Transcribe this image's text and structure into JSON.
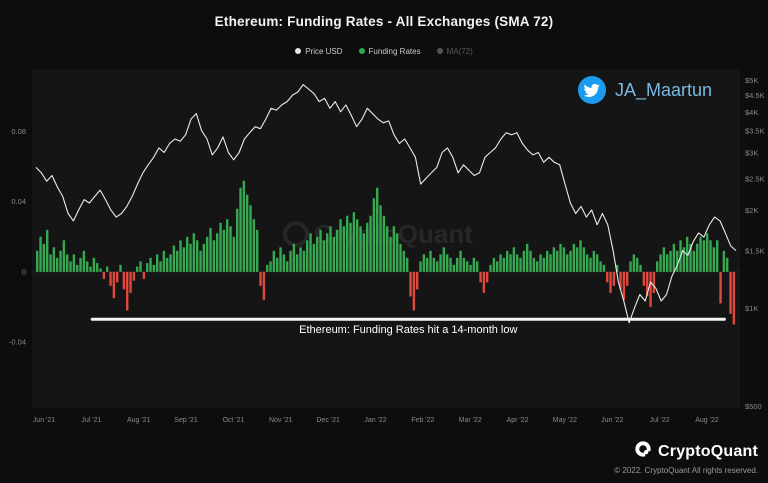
{
  "title": "Ethereum: Funding Rates - All Exchanges (SMA 72)",
  "legend": [
    {
      "label": "Price USD",
      "color": "#e8e8e8"
    },
    {
      "label": "Funding Rates",
      "color": "#2fa84f"
    },
    {
      "label": "MA(72)",
      "color": "#555555"
    }
  ],
  "twitter": {
    "handle": "JA_Maartun",
    "icon": "twitter-bird-icon",
    "blue": "#1d9bf0",
    "handle_color": "#7ab9e2"
  },
  "watermark": "CryptoQuant",
  "footer": {
    "brand": "CryptoQuant",
    "logo": "cryptoquant-logo-icon",
    "copyright": "© 2022. CryptoQuant All rights reserved."
  },
  "colors": {
    "background": "#0d0d0d",
    "panel": "#151515",
    "bar_positive": "#35a952",
    "bar_negative": "#e0483e",
    "price_line": "#ebebeb",
    "axis_text": "#8a8a8a",
    "annotation": "#f5f5f5",
    "watermark": "rgba(255,255,255,0.08)",
    "zero_line": "#262626"
  },
  "chart_data": {
    "type": "bar",
    "title": "Ethereum: Funding Rates - All Exchanges (SMA 72)",
    "x_labels": [
      "Jun '21",
      "Jul '21",
      "Aug '21",
      "Sep '21",
      "Oct '21",
      "Nov '21",
      "Dec '21",
      "Jan '22",
      "Feb '22",
      "Mar '22",
      "Apr '22",
      "May '22",
      "Jun '22",
      "Jul '22",
      "Aug '22"
    ],
    "left_axis": {
      "label": "Funding Rates",
      "ticks": [
        0.08,
        0.04,
        0,
        -0.04
      ],
      "min": -0.0765,
      "max": 0.114,
      "grid": false
    },
    "right_axis": {
      "label": "Price USD",
      "scale": "log",
      "tick_labels": [
        "$5K",
        "$4.5K",
        "$4K",
        "$3.5K",
        "$3K",
        "$2.5K",
        "$2K",
        "$1.5K",
        "$1K",
        "$500"
      ],
      "tick_values": [
        5000,
        4500,
        4000,
        3500,
        3000,
        2500,
        2000,
        1500,
        1000,
        500
      ],
      "min": 500,
      "max": 5300
    },
    "annotation": {
      "text": "Ethereum: Funding Rates hit a 14-month low",
      "value": -0.027,
      "x_start_frac": 0.085,
      "x_end_frac": 0.978
    },
    "series": [
      {
        "name": "Funding Rates",
        "type": "bar",
        "values": [
          0.012,
          0.02,
          0.016,
          0.024,
          0.01,
          0.014,
          0.008,
          0.012,
          0.018,
          0.01,
          0.006,
          0.01,
          0.004,
          0.008,
          0.012,
          0.006,
          0.003,
          0.008,
          0.005,
          0.002,
          -0.004,
          0.003,
          -0.008,
          -0.015,
          -0.006,
          0.004,
          -0.01,
          -0.022,
          -0.012,
          -0.005,
          0.003,
          0.006,
          -0.004,
          0.005,
          0.008,
          0.004,
          0.01,
          0.006,
          0.012,
          0.008,
          0.01,
          0.015,
          0.012,
          0.018,
          0.014,
          0.02,
          0.016,
          0.022,
          0.018,
          0.012,
          0.016,
          0.02,
          0.025,
          0.018,
          0.022,
          0.028,
          0.024,
          0.03,
          0.026,
          0.02,
          0.036,
          0.048,
          0.052,
          0.044,
          0.038,
          0.03,
          0.024,
          -0.008,
          -0.016,
          0.004,
          0.006,
          0.012,
          0.008,
          0.014,
          0.01,
          0.006,
          0.012,
          0.016,
          0.01,
          0.014,
          0.012,
          0.018,
          0.022,
          0.016,
          0.02,
          0.024,
          0.018,
          0.022,
          0.026,
          0.02,
          0.024,
          0.03,
          0.026,
          0.032,
          0.028,
          0.034,
          0.03,
          0.026,
          0.022,
          0.028,
          0.032,
          0.042,
          0.048,
          0.038,
          0.032,
          0.026,
          0.02,
          0.026,
          0.022,
          0.016,
          0.012,
          0.008,
          -0.014,
          -0.022,
          -0.01,
          0.006,
          0.01,
          0.008,
          0.012,
          0.008,
          0.006,
          0.01,
          0.014,
          0.01,
          0.008,
          0.004,
          0.008,
          0.012,
          0.008,
          0.006,
          0.004,
          0.008,
          0.006,
          -0.006,
          -0.012,
          -0.006,
          0.004,
          0.008,
          0.006,
          0.01,
          0.008,
          0.012,
          0.01,
          0.014,
          0.01,
          0.008,
          0.012,
          0.016,
          0.012,
          0.008,
          0.006,
          0.01,
          0.008,
          0.012,
          0.01,
          0.014,
          0.012,
          0.016,
          0.014,
          0.01,
          0.012,
          0.016,
          0.014,
          0.018,
          0.014,
          0.01,
          0.008,
          0.012,
          0.01,
          0.006,
          0.004,
          -0.006,
          -0.012,
          -0.008,
          0.004,
          -0.01,
          -0.016,
          -0.008,
          0.006,
          0.01,
          0.008,
          0.004,
          -0.008,
          -0.014,
          -0.02,
          -0.012,
          0.006,
          0.01,
          0.014,
          0.01,
          0.012,
          0.016,
          0.012,
          0.018,
          0.014,
          0.02,
          0.016,
          0.012,
          0.016,
          0.02,
          0.018,
          0.022,
          0.018,
          0.014,
          0.018,
          -0.018,
          0.012,
          0.008,
          -0.024,
          -0.03
        ]
      },
      {
        "name": "Price USD",
        "type": "line",
        "units": "kUSD",
        "values_kusd": [
          2.7,
          2.6,
          2.45,
          2.55,
          2.35,
          2.2,
          1.95,
          1.85,
          2.0,
          2.15,
          2.1,
          2.2,
          2.3,
          2.15,
          2.0,
          1.9,
          1.95,
          2.05,
          2.2,
          2.4,
          2.6,
          2.75,
          2.9,
          3.1,
          3.0,
          3.2,
          3.3,
          3.25,
          3.4,
          3.8,
          3.95,
          3.5,
          3.3,
          2.95,
          3.1,
          3.35,
          3.0,
          2.85,
          3.0,
          3.3,
          3.45,
          3.6,
          3.55,
          3.8,
          4.1,
          4.05,
          4.2,
          4.3,
          4.5,
          4.6,
          4.85,
          4.7,
          4.55,
          4.3,
          4.4,
          4.1,
          4.3,
          4.0,
          4.2,
          3.9,
          3.6,
          3.8,
          4.1,
          3.95,
          3.8,
          3.7,
          3.75,
          3.4,
          3.2,
          3.3,
          3.1,
          2.9,
          2.4,
          2.5,
          2.6,
          2.7,
          3.0,
          3.1,
          2.9,
          2.6,
          2.75,
          2.65,
          2.55,
          2.6,
          2.9,
          3.0,
          3.1,
          3.3,
          3.45,
          3.4,
          3.45,
          3.2,
          3.05,
          2.95,
          3.0,
          2.8,
          2.9,
          2.8,
          2.75,
          2.4,
          2.1,
          1.95,
          2.05,
          1.9,
          2.0,
          1.8,
          1.95,
          1.8,
          1.5,
          1.2,
          1.05,
          0.9,
          1.0,
          1.1,
          1.05,
          1.2,
          1.15,
          1.05,
          1.1,
          1.25,
          1.35,
          1.5,
          1.45,
          1.6,
          1.7,
          1.65,
          1.8,
          1.9,
          1.85,
          1.7,
          1.55,
          1.5
        ]
      }
    ]
  }
}
